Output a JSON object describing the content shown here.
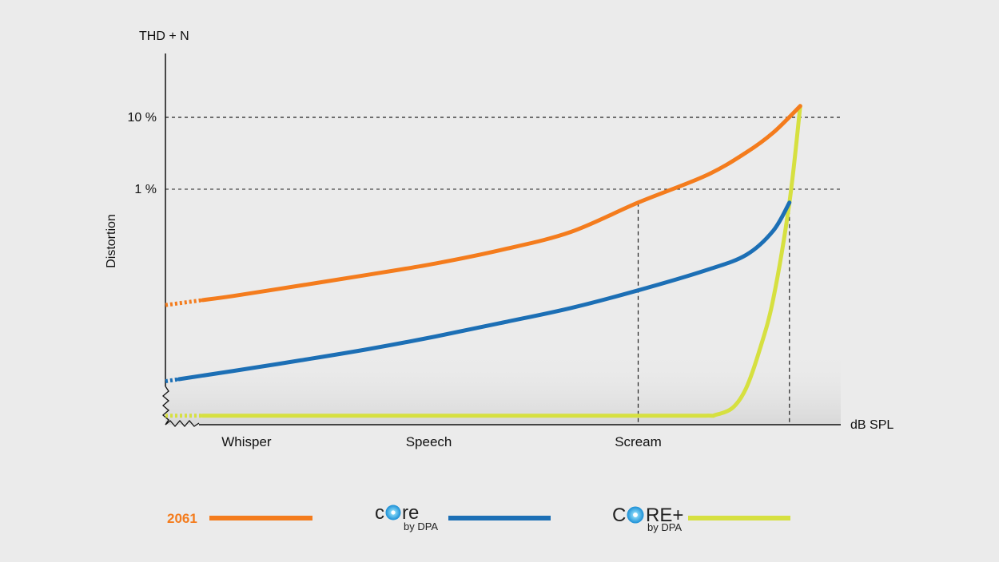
{
  "chart_data": {
    "type": "line",
    "ylabel": "Distortion",
    "y_unit_label": "THD + N",
    "xlabel": "dB SPL",
    "x_scale": "qualitative",
    "y_scale": "log",
    "x_range": [
      0,
      100
    ],
    "y_range": [
      0.005,
      35
    ],
    "grid": false,
    "y_ticks": [
      {
        "value": 10,
        "label": "10 %"
      },
      {
        "value": 1,
        "label": "1 %"
      }
    ],
    "categories": [
      {
        "label": "Whisper",
        "x": 12
      },
      {
        "label": "Speech",
        "x": 39
      },
      {
        "label": "Scream",
        "x": 70
      }
    ],
    "guides": [
      {
        "x": 70,
        "to_y": 1
      },
      {
        "x": 92.4,
        "to_y": 1
      }
    ],
    "legend_placement": "bottom",
    "series": [
      {
        "name": "2061",
        "color": "#f47c1d",
        "dotted_until_x": 5.5,
        "x": [
          0,
          10,
          20,
          30,
          40,
          50,
          60,
          70,
          80,
          86,
          90,
          94
        ],
        "y": [
          0.0867,
          0.1076,
          0.1383,
          0.1786,
          0.2339,
          0.3262,
          0.4949,
          1.0,
          1.9,
          3.3,
          5.3,
          10.0
        ]
      },
      {
        "name": "",
        "legend_logo": "core",
        "legend_sub": "by DPA",
        "color": "#1c6fb5",
        "dotted_until_x": 2,
        "x": [
          0,
          10,
          20,
          30,
          40,
          50,
          60,
          70,
          80,
          86,
          90,
          92.4
        ],
        "y": [
          0.0141,
          0.018,
          0.0232,
          0.0303,
          0.041,
          0.0572,
          0.0807,
          0.1233,
          0.1987,
          0.287,
          0.51,
          1.0
        ]
      },
      {
        "name": "",
        "legend_logo": "CORE+",
        "legend_sub": "by DPA",
        "color": "#d6e040",
        "dotted_until_x": 5.5,
        "x": [
          0,
          10,
          20,
          30,
          40,
          50,
          60,
          70,
          80,
          81.4,
          84,
          86,
          88,
          90,
          92.4,
          94
        ],
        "y": [
          0.0062,
          0.0062,
          0.0062,
          0.0062,
          0.0062,
          0.0062,
          0.0062,
          0.0062,
          0.0062,
          0.0063,
          0.0075,
          0.012,
          0.03,
          0.1,
          1.0,
          10.0
        ]
      }
    ]
  }
}
